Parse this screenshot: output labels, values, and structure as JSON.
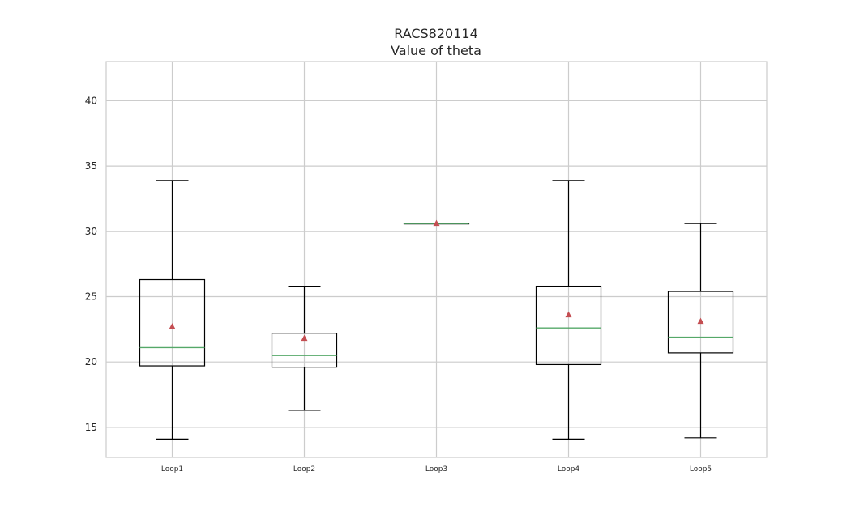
{
  "chart_data": {
    "type": "box",
    "title": "RACS820114",
    "subtitle": "Value of theta",
    "xlabel": "",
    "ylabel": "",
    "ylim": [
      12.7,
      43.0
    ],
    "yticks": [
      15,
      20,
      25,
      30,
      35,
      40
    ],
    "grid": true,
    "categories": [
      "Loop1",
      "Loop2",
      "Loop3",
      "Loop4",
      "Loop5"
    ],
    "boxes": [
      {
        "whisker_low": 14.1,
        "q1": 19.7,
        "median": 21.1,
        "q3": 26.3,
        "whisker_high": 33.9,
        "mean": 22.7
      },
      {
        "whisker_low": 16.3,
        "q1": 19.6,
        "median": 20.5,
        "q3": 22.2,
        "whisker_high": 25.8,
        "mean": 21.8
      },
      {
        "whisker_low": 30.6,
        "q1": 30.6,
        "median": 30.6,
        "q3": 30.6,
        "whisker_high": 30.6,
        "mean": 30.6
      },
      {
        "whisker_low": 14.1,
        "q1": 19.8,
        "median": 22.6,
        "q3": 25.8,
        "whisker_high": 33.9,
        "mean": 23.6
      },
      {
        "whisker_low": 14.2,
        "q1": 20.7,
        "median": 21.9,
        "q3": 25.4,
        "whisker_high": 30.6,
        "mean": 23.1
      }
    ],
    "colors": {
      "box": "#000000",
      "median": "#55a868",
      "mean": "#c44e52",
      "grid": "#cccccc",
      "frame": "#cccccc"
    }
  }
}
